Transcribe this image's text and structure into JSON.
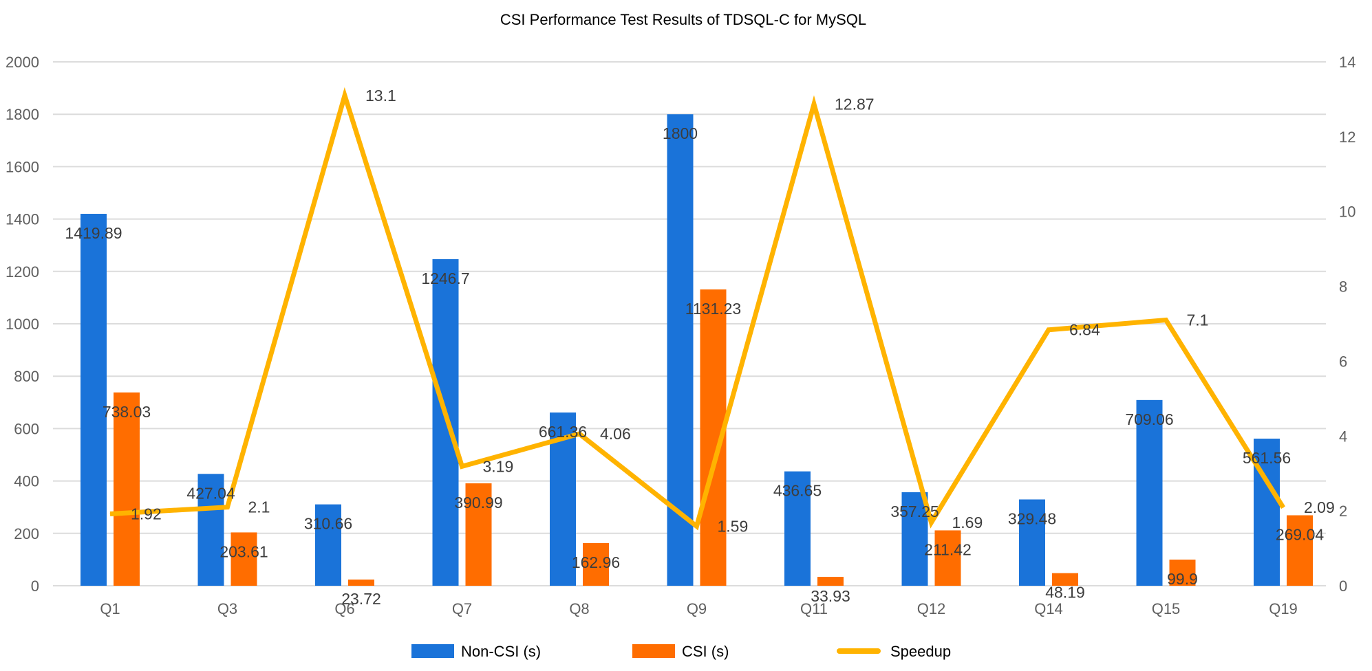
{
  "chart_data": {
    "type": "bar",
    "title": "CSI Performance Test Results of TDSQL-C for MySQL",
    "xlabel": "",
    "ylabel": "",
    "y2label": "",
    "categories": [
      "Q1",
      "Q3",
      "Q6",
      "Q7",
      "Q8",
      "Q9",
      "Q11",
      "Q12",
      "Q14",
      "Q15",
      "Q19"
    ],
    "series": [
      {
        "name": "Non-CSI (s)",
        "type": "bar",
        "axis": "left",
        "color": "#1a73d9",
        "values": [
          1419.89,
          427.04,
          310.66,
          1246.7,
          661.36,
          1800,
          436.65,
          357.25,
          329.48,
          709.06,
          561.56
        ],
        "labels": [
          "1419.89",
          "427.04",
          "310.66",
          "1246.7",
          "661.36",
          "1800",
          "436.65",
          "357.25",
          "329.48",
          "709.06",
          "561.56"
        ]
      },
      {
        "name": "CSI (s)",
        "type": "bar",
        "axis": "left",
        "color": "#ff6d00",
        "values": [
          738.03,
          203.61,
          23.72,
          390.99,
          162.96,
          1131.23,
          33.93,
          211.42,
          48.19,
          99.9,
          269.04
        ],
        "labels": [
          "738.03",
          "203.61",
          "23.72",
          "390.99",
          "162.96",
          "1131.23",
          "33.93",
          "211.42",
          "48.19",
          "99.9",
          "269.04"
        ]
      },
      {
        "name": "Speedup",
        "type": "line",
        "axis": "right",
        "color": "#ffb300",
        "values": [
          1.92,
          2.1,
          13.1,
          3.19,
          4.06,
          1.59,
          12.87,
          1.69,
          6.84,
          7.1,
          2.09
        ],
        "labels": [
          "1.92",
          "2.1",
          "13.1",
          "3.19",
          "4.06",
          "1.59",
          "12.87",
          "1.69",
          "6.84",
          "7.1",
          "2.09"
        ]
      }
    ],
    "ylim": [
      0,
      2000
    ],
    "y2lim": [
      0,
      14
    ],
    "yticks": [
      "0",
      "200",
      "400",
      "600",
      "800",
      "1000",
      "1200",
      "1400",
      "1600",
      "1800",
      "2000"
    ],
    "y2ticks": [
      "0",
      "2",
      "4",
      "6",
      "8",
      "10",
      "12",
      "14"
    ],
    "grid": true,
    "legend": {
      "position": "bottom",
      "entries": [
        "Non-CSI (s)",
        "CSI (s)",
        "Speedup"
      ]
    }
  }
}
